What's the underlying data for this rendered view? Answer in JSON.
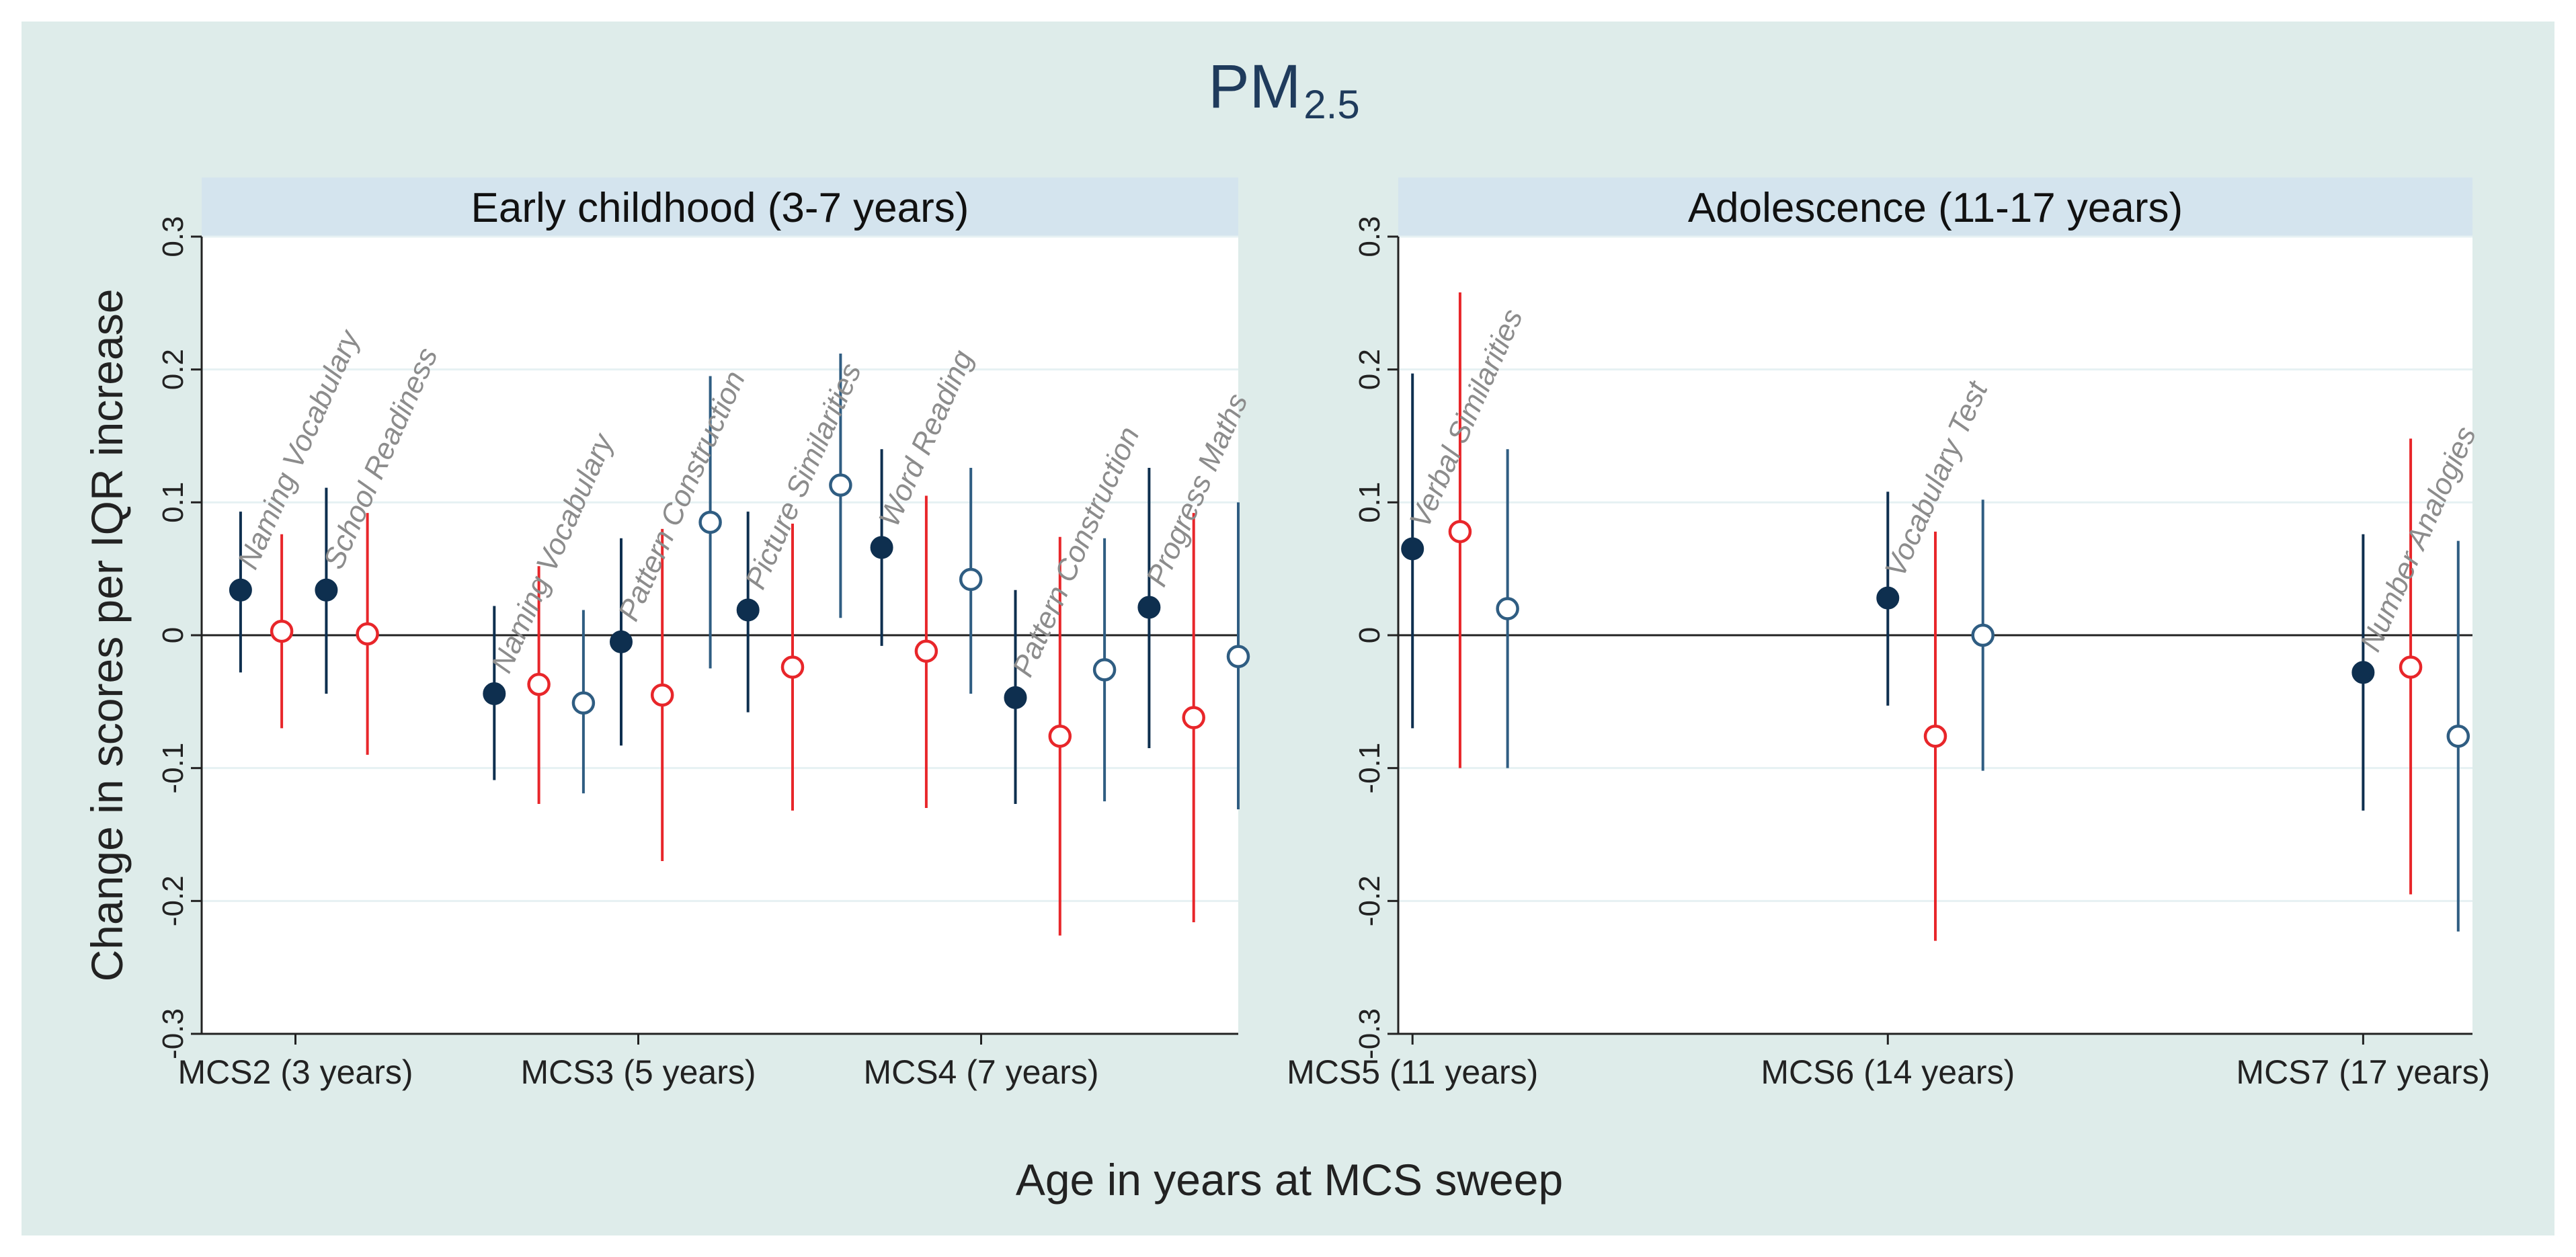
{
  "chart_data": {
    "type": "scatter",
    "title": "PM",
    "title_subscript": "2.5",
    "ylabel": "Change in scores per IQR increase",
    "xlabel": "Age in years at MCS sweep",
    "ylim": [
      -0.3,
      0.3
    ],
    "yticks": [
      "-0.3",
      "-0.2",
      "-0.1",
      "0",
      "0.1",
      "0.2",
      "0.3"
    ],
    "colors": {
      "filled": "#0e2f4f",
      "red": "#e8262a",
      "hollow": "#2f5d82",
      "background": "#deecea",
      "strip": "#d4e4ee",
      "gridline": "#e6f1f3",
      "annotation": "#8c8c8c"
    },
    "panels": [
      {
        "title": "Early childhood (3-7 years)",
        "xlim": [
          1.75,
          4.2
        ],
        "x_ticks": [
          {
            "pos": 2,
            "label": "MCS2 (3 years)"
          },
          {
            "pos": 3,
            "label": "MCS3 (5 years)"
          },
          {
            "pos": 4,
            "label": "MCS4 (7 years)"
          }
        ],
        "tests": [
          {
            "label": "Naming Vocabulary",
            "points": [
              {
                "x": 1.84,
                "style": "filled",
                "y": 0.034,
                "lo": -0.028,
                "hi": 0.093
              },
              {
                "x": 1.96,
                "style": "red",
                "y": 0.003,
                "lo": -0.07,
                "hi": 0.076
              }
            ]
          },
          {
            "label": "School Readiness",
            "points": [
              {
                "x": 2.09,
                "style": "filled",
                "y": 0.034,
                "lo": -0.044,
                "hi": 0.111
              },
              {
                "x": 2.21,
                "style": "red",
                "y": 0.001,
                "lo": -0.09,
                "hi": 0.092
              }
            ]
          },
          {
            "label": "Naming Vocabulary",
            "points": [
              {
                "x": 2.58,
                "style": "filled",
                "y": -0.044,
                "lo": -0.109,
                "hi": 0.022
              },
              {
                "x": 2.71,
                "style": "red",
                "y": -0.037,
                "lo": -0.127,
                "hi": 0.052
              },
              {
                "x": 2.84,
                "style": "hollow",
                "y": -0.051,
                "lo": -0.119,
                "hi": 0.019
              }
            ]
          },
          {
            "label": "Pattern Construction",
            "points": [
              {
                "x": 2.95,
                "style": "filled",
                "y": -0.005,
                "lo": -0.083,
                "hi": 0.073
              },
              {
                "x": 3.07,
                "style": "red",
                "y": -0.045,
                "lo": -0.17,
                "hi": 0.08
              },
              {
                "x": 3.21,
                "style": "hollow",
                "y": 0.085,
                "lo": -0.025,
                "hi": 0.195
              }
            ]
          },
          {
            "label": "Picture Similarities",
            "points": [
              {
                "x": 3.32,
                "style": "filled",
                "y": 0.019,
                "lo": -0.058,
                "hi": 0.093
              },
              {
                "x": 3.45,
                "style": "red",
                "y": -0.024,
                "lo": -0.132,
                "hi": 0.084
              },
              {
                "x": 3.59,
                "style": "hollow",
                "y": 0.113,
                "lo": 0.013,
                "hi": 0.212
              }
            ]
          },
          {
            "label": "Word Reading",
            "points": [
              {
                "x": 3.71,
                "style": "filled",
                "y": 0.066,
                "lo": -0.008,
                "hi": 0.14
              },
              {
                "x": 3.84,
                "style": "red",
                "y": -0.012,
                "lo": -0.13,
                "hi": 0.105
              },
              {
                "x": 3.97,
                "style": "hollow",
                "y": 0.042,
                "lo": -0.044,
                "hi": 0.126
              }
            ]
          },
          {
            "label": "Pattern Construction",
            "points": [
              {
                "x": 4.1,
                "style": "filled",
                "y": -0.047,
                "lo": -0.127,
                "hi": 0.034
              },
              {
                "x": 4.23,
                "style": "red",
                "y": -0.076,
                "lo": -0.226,
                "hi": 0.074
              },
              {
                "x": 4.36,
                "style": "hollow",
                "y": -0.026,
                "lo": -0.125,
                "hi": 0.073
              }
            ]
          },
          {
            "label": "Progress Maths",
            "points": [
              {
                "x": 4.49,
                "style": "filled",
                "y": 0.021,
                "lo": -0.085,
                "hi": 0.126
              },
              {
                "x": 4.62,
                "style": "red",
                "y": -0.062,
                "lo": -0.216,
                "hi": 0.092
              },
              {
                "x": 4.75,
                "style": "hollow",
                "y": -0.016,
                "lo": -0.131,
                "hi": 0.1
              }
            ]
          }
        ]
      },
      {
        "title": "Adolescence (11-17 years)",
        "xlim": [
          4.97,
          7.23
        ],
        "x_ticks": [
          {
            "pos": 5,
            "label": "MCS5 (11 years)"
          },
          {
            "pos": 6,
            "label": "MCS6 (14 years)"
          },
          {
            "pos": 7,
            "label": "MCS7 (17 years)"
          }
        ],
        "tests": [
          {
            "label": "Verbal Similarities",
            "points": [
              {
                "x": 5.0,
                "style": "filled",
                "y": 0.065,
                "lo": -0.07,
                "hi": 0.197
              },
              {
                "x": 5.1,
                "style": "red",
                "y": 0.078,
                "lo": -0.1,
                "hi": 0.258
              },
              {
                "x": 5.2,
                "style": "hollow",
                "y": 0.02,
                "lo": -0.1,
                "hi": 0.14
              }
            ]
          },
          {
            "label": "Vocabulary Test",
            "points": [
              {
                "x": 6.0,
                "style": "filled",
                "y": 0.028,
                "lo": -0.053,
                "hi": 0.108
              },
              {
                "x": 6.1,
                "style": "red",
                "y": -0.076,
                "lo": -0.23,
                "hi": 0.078
              },
              {
                "x": 6.2,
                "style": "hollow",
                "y": 0.0,
                "lo": -0.102,
                "hi": 0.102
              }
            ]
          },
          {
            "label": "Number Analogies",
            "points": [
              {
                "x": 7.0,
                "style": "filled",
                "y": -0.028,
                "lo": -0.132,
                "hi": 0.076
              },
              {
                "x": 7.1,
                "style": "red",
                "y": -0.024,
                "lo": -0.195,
                "hi": 0.148
              },
              {
                "x": 7.2,
                "style": "hollow",
                "y": -0.076,
                "lo": -0.223,
                "hi": 0.071
              }
            ]
          }
        ]
      }
    ]
  }
}
